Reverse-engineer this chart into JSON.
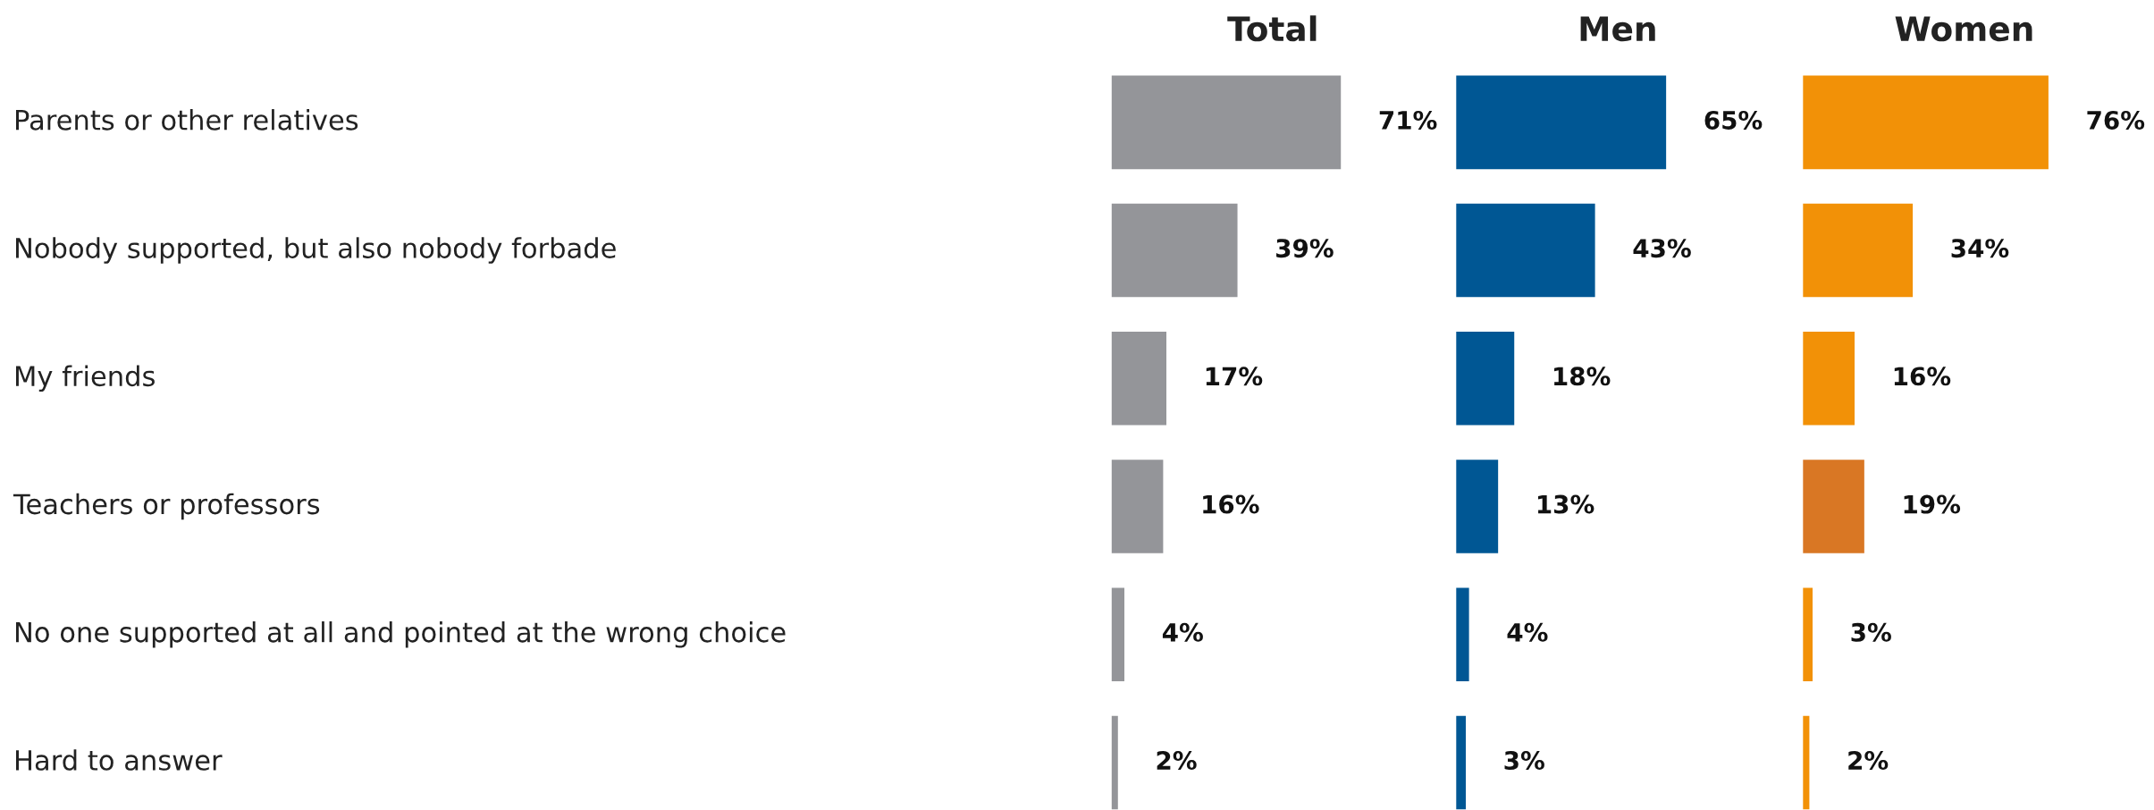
{
  "chart_data": [
    {
      "type": "bar",
      "orientation": "horizontal",
      "title": "Total",
      "categories": [
        "Parents or other relatives",
        "Nobody supported, but also nobody forbade",
        "My friends",
        "Teachers or professors",
        "No one supported at all and pointed at the wrong choice",
        "Hard to answer"
      ],
      "values": [
        71,
        39,
        17,
        16,
        4,
        2
      ],
      "value_labels": [
        "71%",
        "39%",
        "17%",
        "16%",
        "4%",
        "2%"
      ],
      "color": "#949599",
      "tick_labels": "y"
    },
    {
      "type": "bar",
      "orientation": "horizontal",
      "title": "Men",
      "categories": [
        null,
        null,
        null,
        null,
        null,
        null
      ],
      "values": [
        65,
        43,
        18,
        13,
        4,
        3
      ],
      "value_labels": [
        "65%",
        "43%",
        "18%",
        "13%",
        "4%",
        "3%"
      ],
      "color": "#005794",
      "tick_labels": false
    },
    {
      "type": "bar",
      "orientation": "horizontal",
      "title": "Women",
      "categories": [
        null,
        null,
        null,
        null,
        null,
        null
      ],
      "values": [
        76,
        34,
        16,
        19,
        3,
        2
      ],
      "value_labels": [
        "76%",
        "34%",
        "16%",
        "19%",
        "3%",
        "2%"
      ],
      "colors": [
        "#f29107",
        "#f29107",
        "#f29107",
        "#d97724",
        "#f29107",
        "#f29107"
      ],
      "tick_labels": false
    }
  ]
}
